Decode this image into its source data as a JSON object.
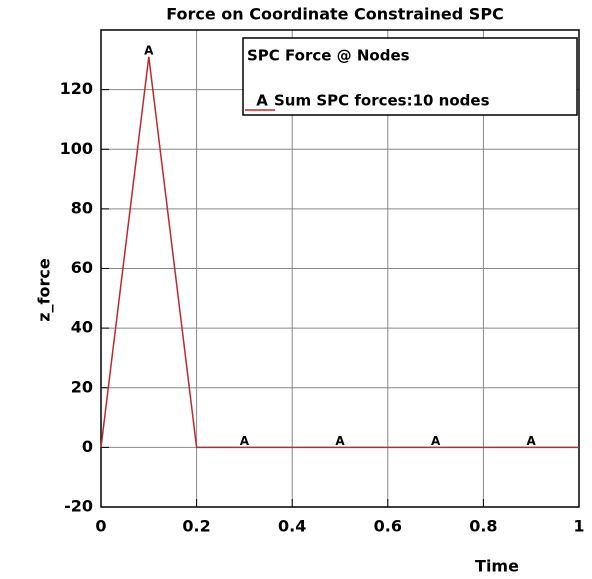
{
  "chart_data": {
    "type": "line",
    "title": "Force on Coordinate Constrained SPC",
    "x_label": "Time",
    "y_label": "z_force",
    "legend_title": "SPC Force @ Nodes",
    "x": [
      0,
      0.1,
      0.2,
      0.3,
      0.5,
      0.7,
      0.9,
      1
    ],
    "series": [
      {
        "name": "Sum SPC forces:10 nodes",
        "color": "#c0282d",
        "marker": "A",
        "values": [
          0,
          131,
          0,
          0,
          0,
          0,
          0,
          0
        ],
        "marker_x": [
          0.1,
          0.3,
          0.5,
          0.7,
          0.9
        ]
      }
    ],
    "xlim": [
      0,
      1
    ],
    "xticks": [
      0,
      0.2,
      0.4,
      0.6,
      0.8,
      1
    ],
    "ylim": [
      -20,
      140
    ],
    "yticks": [
      -20,
      0,
      20,
      40,
      60,
      80,
      100,
      120
    ],
    "grid": true,
    "legend": "upper right"
  }
}
